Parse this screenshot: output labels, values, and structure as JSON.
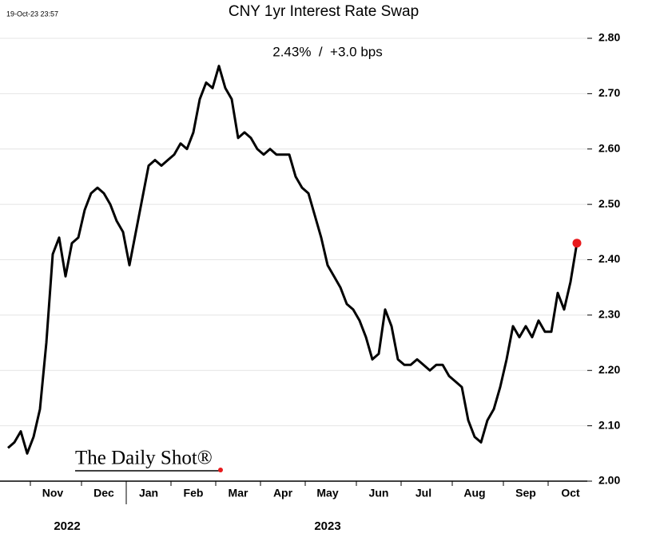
{
  "chart_data": {
    "type": "line",
    "timestamp": "19-Oct-23 23:57",
    "title": "CNY 1yr Interest Rate Swap",
    "subtitle": "2.43%  /  +3.0 bps",
    "watermark": "The Daily Shot®",
    "categories": [
      null,
      null,
      null,
      null,
      null,
      null,
      null,
      "Nov",
      null,
      null,
      null,
      null,
      null,
      null,
      null,
      "Dec",
      null,
      null,
      null,
      null,
      null,
      null,
      "Jan",
      null,
      null,
      null,
      null,
      null,
      null,
      "Feb",
      null,
      null,
      null,
      null,
      null,
      null,
      "Mar",
      null,
      null,
      null,
      null,
      null,
      null,
      "Apr",
      null,
      null,
      null,
      null,
      null,
      null,
      "May",
      null,
      null,
      null,
      null,
      null,
      null,
      null,
      "Jun",
      null,
      null,
      null,
      null,
      null,
      null,
      "Jul",
      null,
      null,
      null,
      null,
      null,
      null,
      null,
      "Aug",
      null,
      null,
      null,
      null,
      null,
      null,
      null,
      "Sep",
      null,
      null,
      null,
      null,
      null,
      null,
      "Oct",
      null
    ],
    "year_labels": [
      "2022",
      "2023"
    ],
    "series": [
      {
        "name": "CNY 1yr IRS",
        "color": "#000000",
        "end_marker_color": "#e8191c",
        "values": [
          2.06,
          2.07,
          2.09,
          2.05,
          2.08,
          2.13,
          2.25,
          2.41,
          2.44,
          2.37,
          2.43,
          2.44,
          2.49,
          2.52,
          2.53,
          2.52,
          2.5,
          2.47,
          2.45,
          2.39,
          2.45,
          2.51,
          2.57,
          2.58,
          2.57,
          2.58,
          2.59,
          2.61,
          2.6,
          2.63,
          2.69,
          2.72,
          2.71,
          2.75,
          2.71,
          2.69,
          2.62,
          2.63,
          2.62,
          2.6,
          2.59,
          2.6,
          2.59,
          2.59,
          2.59,
          2.55,
          2.53,
          2.52,
          2.48,
          2.44,
          2.39,
          2.37,
          2.35,
          2.32,
          2.31,
          2.29,
          2.26,
          2.22,
          2.23,
          2.31,
          2.28,
          2.22,
          2.21,
          2.21,
          2.22,
          2.21,
          2.2,
          2.21,
          2.21,
          2.19,
          2.18,
          2.17,
          2.11,
          2.08,
          2.07,
          2.11,
          2.13,
          2.17,
          2.22,
          2.28,
          2.26,
          2.28,
          2.26,
          2.29,
          2.27,
          2.27,
          2.34,
          2.31,
          2.36,
          2.43
        ]
      }
    ],
    "ylim": [
      2.0,
      2.8
    ],
    "yticks": [
      {
        "value": 2.0,
        "label": "2.00"
      },
      {
        "value": 2.1,
        "label": "2.10"
      },
      {
        "value": 2.2,
        "label": "2.20"
      },
      {
        "value": 2.3,
        "label": "2.30"
      },
      {
        "value": 2.4,
        "label": "2.40"
      },
      {
        "value": 2.5,
        "label": "2.50"
      },
      {
        "value": 2.6,
        "label": "2.60"
      },
      {
        "value": 2.7,
        "label": "2.70"
      },
      {
        "value": 2.8,
        "label": "2.80"
      }
    ],
    "grid": true
  }
}
